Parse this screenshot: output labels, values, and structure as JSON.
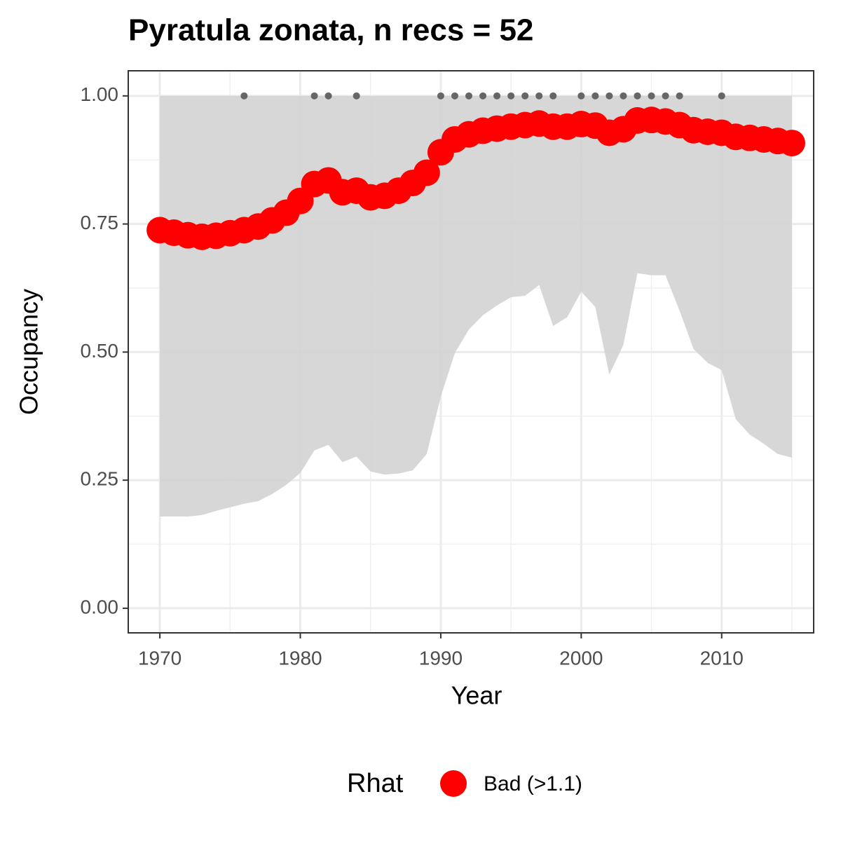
{
  "chart_data": {
    "type": "line",
    "title": "Pyratula zonata, n recs = 52",
    "x_label": "Year",
    "y_label": "Occupancy",
    "x": [
      1970,
      1971,
      1972,
      1973,
      1974,
      1975,
      1976,
      1977,
      1978,
      1979,
      1980,
      1981,
      1982,
      1983,
      1984,
      1985,
      1986,
      1987,
      1988,
      1989,
      1990,
      1991,
      1992,
      1993,
      1994,
      1995,
      1996,
      1997,
      1998,
      1999,
      2000,
      2001,
      2002,
      2003,
      2004,
      2005,
      2006,
      2007,
      2008,
      2009,
      2010,
      2011,
      2012,
      2013,
      2014,
      2015
    ],
    "series": [
      {
        "name": "Bad (>1.1)",
        "color": "#ff0000",
        "values": [
          0.738,
          0.733,
          0.728,
          0.725,
          0.727,
          0.732,
          0.738,
          0.745,
          0.757,
          0.772,
          0.795,
          0.828,
          0.835,
          0.812,
          0.815,
          0.802,
          0.805,
          0.815,
          0.83,
          0.85,
          0.89,
          0.915,
          0.925,
          0.932,
          0.936,
          0.94,
          0.943,
          0.946,
          0.94,
          0.94,
          0.945,
          0.942,
          0.928,
          0.935,
          0.952,
          0.953,
          0.95,
          0.943,
          0.933,
          0.93,
          0.928,
          0.92,
          0.918,
          0.915,
          0.912,
          0.908
        ]
      }
    ],
    "band": {
      "color": "#d3d3d3",
      "upper": [
        1,
        1,
        1,
        1,
        1,
        1,
        1,
        1,
        1,
        1,
        1,
        1,
        1,
        1,
        1,
        1,
        1,
        1,
        1,
        1,
        1,
        1,
        1,
        1,
        1,
        1,
        1,
        1,
        1,
        1,
        1,
        1,
        1,
        1,
        1,
        1,
        1,
        1,
        1,
        1,
        1,
        1,
        1,
        1,
        1,
        1
      ],
      "lower": [
        0.179,
        0.179,
        0.179,
        0.182,
        0.19,
        0.197,
        0.204,
        0.209,
        0.223,
        0.241,
        0.264,
        0.308,
        0.319,
        0.285,
        0.296,
        0.267,
        0.261,
        0.263,
        0.269,
        0.301,
        0.413,
        0.498,
        0.544,
        0.572,
        0.591,
        0.607,
        0.61,
        0.631,
        0.551,
        0.568,
        0.618,
        0.588,
        0.456,
        0.514,
        0.654,
        0.65,
        0.65,
        0.581,
        0.506,
        0.479,
        0.465,
        0.369,
        0.339,
        0.321,
        0.301,
        0.294
      ]
    },
    "records": {
      "color": "#666666",
      "x": [
        1976,
        1981,
        1982,
        1984,
        1990,
        1991,
        1992,
        1993,
        1994,
        1995,
        1996,
        1997,
        1998,
        2000,
        2001,
        2002,
        2003,
        2004,
        2005,
        2006,
        2007,
        2010
      ],
      "values": [
        1,
        1,
        1,
        1,
        1,
        1,
        1,
        1,
        1,
        1,
        1,
        1,
        1,
        1,
        1,
        1,
        1,
        1,
        1,
        1,
        1,
        1
      ]
    },
    "legend": {
      "title": "Rhat",
      "position": "bottom"
    },
    "xlim": [
      1967.75,
      2016.55
    ],
    "ylim": [
      -0.048,
      1.049
    ],
    "xticks": [
      1970,
      1980,
      1990,
      2000,
      2010
    ],
    "yticks": [
      {
        "value": 0,
        "label": "0.00"
      },
      {
        "value": 0.25,
        "label": "0.25"
      },
      {
        "value": 0.5,
        "label": "0.50"
      },
      {
        "value": 0.75,
        "label": "0.75"
      },
      {
        "value": 1,
        "label": "1.00"
      }
    ],
    "grid": true
  }
}
